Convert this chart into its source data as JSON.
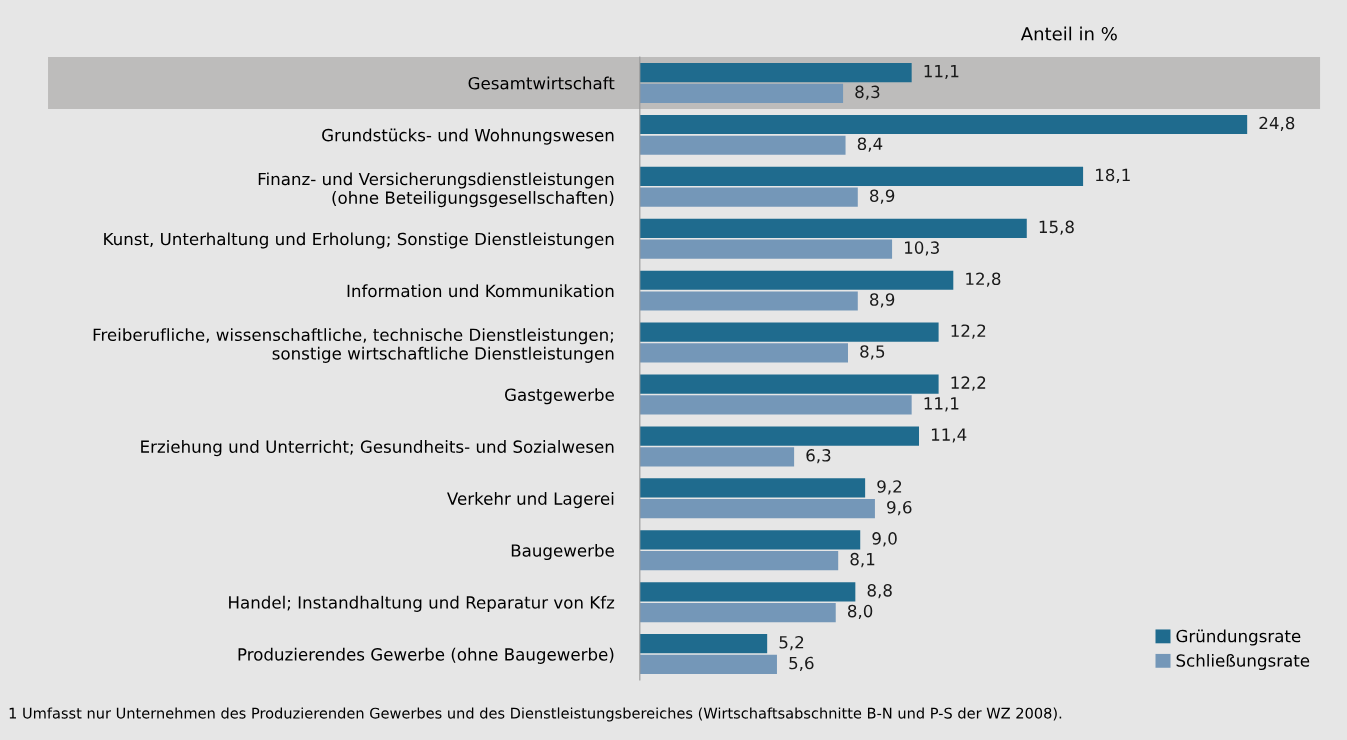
{
  "chart_data": {
    "type": "bar",
    "orientation": "horizontal",
    "title": "Anteil in %",
    "categories": [
      "Gesamtwirtschaft",
      "Grundstücks- und Wohnungswesen",
      "Finanz- und Versicherungsdienstleistungen\n(ohne Beteiligungsgesellschaften)",
      "Kunst, Unterhaltung und Erholung; Sonstige Dienstleistungen",
      "Information und Kommunikation",
      "Freiberufliche, wissenschaftliche, technische Dienstleistungen;\nsonstige wirtschaftliche Dienstleistungen",
      "Gastgewerbe",
      "Erziehung und Unterricht; Gesundheits- und Sozialwesen",
      "Verkehr und Lagerei",
      "Baugewerbe",
      "Handel; Instandhaltung und Reparatur von Kfz",
      "Produzierendes Gewerbe (ohne Baugewerbe)"
    ],
    "series": [
      {
        "name": "Gründungsrate",
        "color": "#1f6b8e",
        "values": [
          11.1,
          24.8,
          18.1,
          15.8,
          12.8,
          12.2,
          12.2,
          11.4,
          9.2,
          9.0,
          8.8,
          5.2
        ],
        "value_labels": [
          "11,1",
          "24,8",
          "18,1",
          "15,8",
          "12,8",
          "12,2",
          "12,2",
          "11,4",
          "9,2",
          "9,0",
          "8,8",
          "5,2"
        ]
      },
      {
        "name": "Schließungsrate",
        "color": "#7497b8",
        "values": [
          8.3,
          8.4,
          8.9,
          10.3,
          8.9,
          8.5,
          11.1,
          6.3,
          9.6,
          8.1,
          8.0,
          5.6
        ],
        "value_labels": [
          "8,3",
          "8,4",
          "8,9",
          "10,3",
          "8,9",
          "8,5",
          "11,1",
          "6,3",
          "9,6",
          "8,1",
          "8,0",
          "5,6"
        ]
      }
    ],
    "legend": "bottom right",
    "grid": false,
    "bands": [
      {
        "axis": "y",
        "from": "Gesamtwirtschaft",
        "to": "Gesamtwirtschaft",
        "color": "#bdbcbb"
      }
    ],
    "annotations": [
      "1 Umfasst nur Unternehmen des Produzierenden Gewerbes und des Dienstleistungsbereiches (Wirtschaftsabschnitte B-N und P-S der WZ 2008)."
    ]
  }
}
